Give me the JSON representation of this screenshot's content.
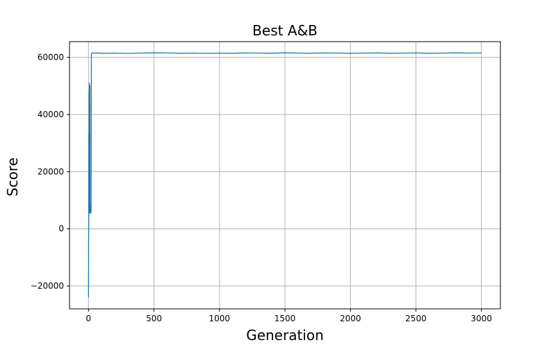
{
  "chart_data": {
    "type": "line",
    "title": "Best A&B",
    "xlabel": "Generation",
    "ylabel": "Score",
    "xlim": [
      -145,
      3145
    ],
    "ylim": [
      -28000,
      65500
    ],
    "grid": true,
    "x_ticks": [
      0,
      500,
      1000,
      1500,
      2000,
      2500,
      3000
    ],
    "x_tick_labels": [
      "0",
      "500",
      "1000",
      "1500",
      "2000",
      "2500",
      "3000"
    ],
    "y_ticks": [
      -20000,
      0,
      20000,
      40000,
      60000
    ],
    "y_tick_labels": [
      "−20000",
      "0",
      "20000",
      "40000",
      "60000"
    ],
    "series": [
      {
        "color": "#1f77b4",
        "x": [
          0,
          1,
          2,
          3,
          4,
          5,
          6,
          7,
          8,
          9,
          10,
          11,
          12,
          13,
          14,
          15,
          16,
          18,
          20,
          22,
          25,
          30,
          40,
          60,
          100,
          200,
          300,
          400,
          500,
          600,
          700,
          800,
          900,
          1000,
          1100,
          1200,
          1300,
          1400,
          1500,
          1600,
          1700,
          1800,
          1900,
          2000,
          2100,
          2200,
          2300,
          2400,
          2500,
          2600,
          2700,
          2800,
          2900,
          3000
        ],
        "y": [
          -24000,
          -5000,
          5000,
          33000,
          6000,
          48000,
          5500,
          51000,
          7000,
          20000,
          8000,
          50000,
          6000,
          8000,
          5500,
          7000,
          6000,
          5500,
          6500,
          61000,
          61500,
          61600,
          61500,
          61550,
          61450,
          61500,
          61400,
          61500,
          61600,
          61550,
          61450,
          61500,
          61400,
          61500,
          61450,
          61550,
          61500,
          61450,
          61600,
          61500,
          61450,
          61550,
          61500,
          61450,
          61500,
          61550,
          61450,
          61500,
          61550,
          61450,
          61500,
          61600,
          61500,
          61550
        ]
      }
    ]
  }
}
